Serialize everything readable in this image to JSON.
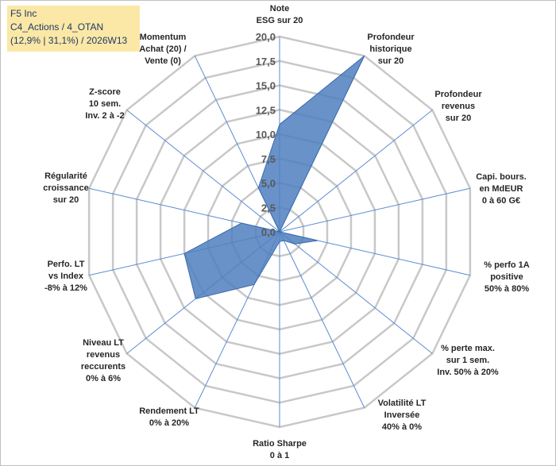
{
  "title": {
    "line1": "F5 Inc",
    "line2": "C4_Actions / 4_OTAN",
    "line3": "(12,9% | 31,1%) / 2026W13"
  },
  "chart_data": {
    "type": "radar",
    "scale": {
      "min": 0,
      "max": 20,
      "step": 2.5
    },
    "tick_labels": [
      "0,0",
      "2,5",
      "5,0",
      "7,5",
      "10,0",
      "12,5",
      "15,0",
      "17,5",
      "20,0"
    ],
    "axes": [
      {
        "label": [
          "Note",
          "ESG sur 20"
        ],
        "value": 11.0
      },
      {
        "label": [
          "Profondeur",
          "historique",
          "sur 20"
        ],
        "value": 20.0
      },
      {
        "label": [
          "Profondeur",
          "revenus",
          "sur 20"
        ],
        "value": 0.0
      },
      {
        "label": [
          "Capi. bours.",
          "en MdEUR",
          "0 à 60 G€"
        ],
        "value": 0.0
      },
      {
        "label": [
          "% perfo 1A",
          "positive",
          "50% à 80%"
        ],
        "value": 4.0
      },
      {
        "label": [
          "% perte max.",
          "sur 1 sem.",
          "Inv. 50% à 20%"
        ],
        "value": 2.0
      },
      {
        "label": [
          "Volatilité LT",
          "Inversée",
          "40% à 0%"
        ],
        "value": 1.0
      },
      {
        "label": [
          "Ratio Sharpe",
          "0 à 1"
        ],
        "value": 1.0
      },
      {
        "label": [
          "Rendement LT",
          "0% à 20%"
        ],
        "value": 6.0
      },
      {
        "label": [
          "Niveau LT",
          "revenus",
          "reccurents",
          "0% à 6%"
        ],
        "value": 11.0
      },
      {
        "label": [
          "Perfo. LT",
          "vs Index",
          "-8% à 12%"
        ],
        "value": 10.0
      },
      {
        "label": [
          "Régularité",
          "croissance",
          "sur 20"
        ],
        "value": 4.0
      },
      {
        "label": [
          "Z-score",
          "10 sem.",
          "Inv. 2 à -2"
        ],
        "value": 0.0
      },
      {
        "label": [
          "Momentum",
          "Achat (20) /",
          "Vente (0)"
        ],
        "value": 5.0
      }
    ],
    "colors": {
      "fill": "#4f7fc0",
      "stroke": "#3a6aac",
      "grid": "#c8c8c8",
      "spoke": "#5b8bd0"
    }
  }
}
